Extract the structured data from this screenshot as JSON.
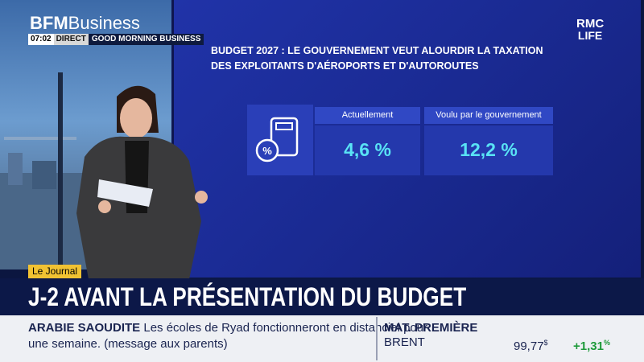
{
  "header": {
    "logo_brand": "BFM",
    "logo_channel": "Business",
    "time": "07:02",
    "live": "DIRECT",
    "show": "GOOD MORNING BUSINESS"
  },
  "corner_logo": {
    "line1": "RMC",
    "line2": "LIFE"
  },
  "screen": {
    "title_lines": [
      "BUDGET 2027 : LE GOUVERNEMENT VEUT ALOURDIR LA TAXATION",
      "DES EXPLOITANTS D'AÉROPORTS ET D'AUTOROUTES"
    ],
    "table": {
      "headers": [
        "Actuellement",
        "Voulu par le gouvernement"
      ],
      "values": [
        "4,6 %",
        "12,2 %"
      ]
    }
  },
  "lower_third": {
    "tag": "Le Journal",
    "headline": "J-2 AVANT LA PRÉSENTATION DU BUDGET"
  },
  "ticker": {
    "topic": "ARABIE SAOUDITE",
    "text_lines": [
      "Les écoles de Ryad fonctionneront en distanciel pour",
      "une semaine. (message aux parents)"
    ]
  },
  "market": {
    "title": "MAT. PREMIÈRE",
    "name": "BRENT",
    "price": "99,77",
    "price_unit": "$",
    "change": "+1,31",
    "change_unit": "%"
  }
}
